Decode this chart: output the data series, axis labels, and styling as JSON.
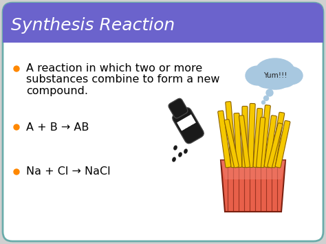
{
  "title": "Synthesis Reaction",
  "title_color": "#ffffff",
  "header_color": "#6b63cc",
  "slide_bg": "#ffffff",
  "outer_bg": "#d0d0d0",
  "border_color": "#6aacaa",
  "bullet_color": "#ff8800",
  "bullet1_line1": "A reaction in which two or more",
  "bullet1_line2": "substances combine to form a new",
  "bullet1_line3": "compound.",
  "bullet2": "A + B → AB",
  "bullet3": "Na + Cl → NaCl",
  "yum_text": "Yum!!!",
  "cloud_color": "#a8c8e0",
  "text_color": "#000000",
  "font_size_title": 18,
  "font_size_body": 11.5,
  "figw": 4.74,
  "figh": 3.55,
  "dpi": 100
}
